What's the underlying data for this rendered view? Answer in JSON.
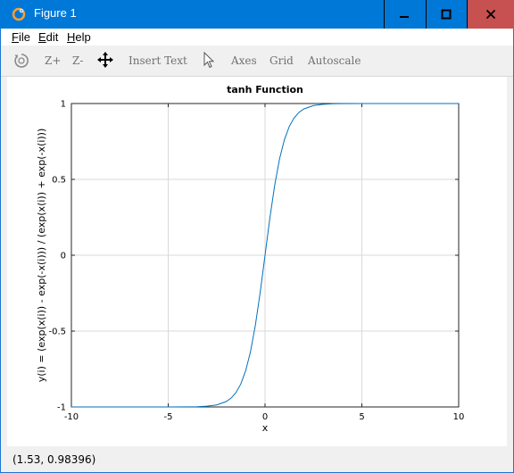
{
  "window": {
    "title": "Figure 1",
    "icon": "octave-icon"
  },
  "menu": {
    "items": [
      {
        "label": "File",
        "mnemonic": "F",
        "rest": "ile"
      },
      {
        "label": "Edit",
        "mnemonic": "E",
        "rest": "dit"
      },
      {
        "label": "Help",
        "mnemonic": "H",
        "rest": "elp"
      }
    ]
  },
  "toolbar": {
    "rotate_icon": "rotate-icon",
    "zoom_in": "Z+",
    "zoom_out": "Z-",
    "pan_icon": "pan-icon",
    "insert_text": "Insert Text",
    "select_icon": "select-cursor-icon",
    "axes": "Axes",
    "grid": "Grid",
    "autoscale": "Autoscale"
  },
  "status": {
    "coordinates": "(1.53, 0.98396)"
  },
  "chart_data": {
    "type": "line",
    "title": "tanh Function",
    "xlabel": "x",
    "ylabel": "y(i) = (exp(x(i)) - exp(-x(i))) / (exp(x(i)) + exp(-x(i)))",
    "xlim": [
      -10,
      10
    ],
    "ylim": [
      -1,
      1
    ],
    "xticks": [
      -10,
      -5,
      0,
      5,
      10
    ],
    "xtick_labels": [
      "-10",
      "-5",
      "0",
      "5",
      "10"
    ],
    "yticks": [
      -1,
      -0.5,
      0,
      0.5,
      1
    ],
    "ytick_labels": [
      "-1",
      "-0.5",
      "0",
      "0.5",
      "1"
    ],
    "grid": true,
    "line_color": "#0072bd",
    "series": [
      {
        "x": [
          -10,
          -8,
          -6,
          -5,
          -4,
          -3.5,
          -3,
          -2.5,
          -2,
          -1.75,
          -1.5,
          -1.25,
          -1,
          -0.75,
          -0.5,
          -0.25,
          0,
          0.25,
          0.5,
          0.75,
          1,
          1.25,
          1.5,
          1.75,
          2,
          2.5,
          3,
          3.5,
          4,
          5,
          6,
          8,
          10
        ],
        "y": [
          -1,
          -1,
          -0.99999,
          -0.99991,
          -0.99933,
          -0.99818,
          -0.99505,
          -0.98661,
          -0.96403,
          -0.94138,
          -0.90515,
          -0.84828,
          -0.76159,
          -0.63515,
          -0.46212,
          -0.24492,
          0,
          0.24492,
          0.46212,
          0.63515,
          0.76159,
          0.84828,
          0.90515,
          0.94138,
          0.96403,
          0.98661,
          0.99505,
          0.99818,
          0.99933,
          0.99991,
          0.99999,
          1,
          1
        ]
      }
    ]
  }
}
